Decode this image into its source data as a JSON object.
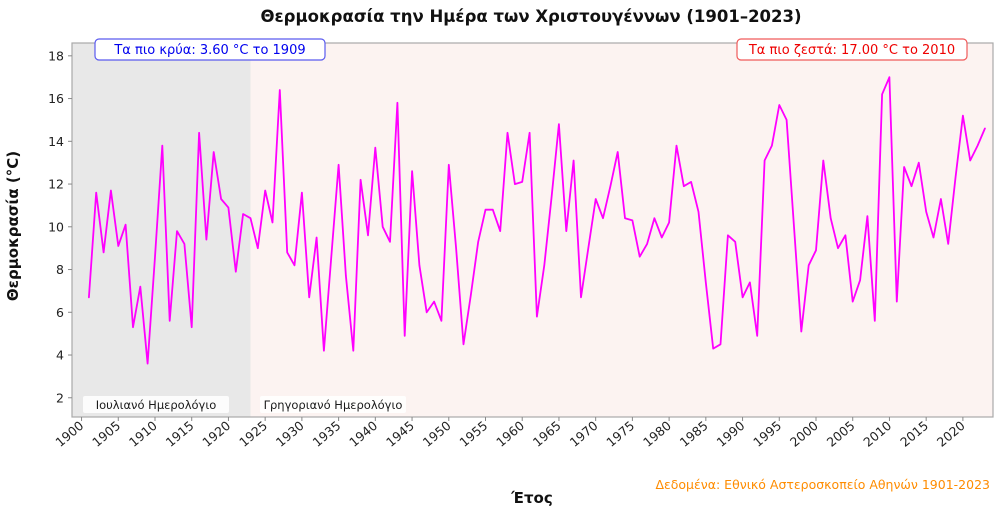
{
  "title": "Θερμοκρασία την Ημέρα των Χριστουγέννων (1901–2023)",
  "annotations": {
    "coldest": {
      "label": "Τα πιο κρύα: 3.60 °C το 1909",
      "value_c": 3.6,
      "year": 1909,
      "text_color": "#0000EE",
      "border_color": "#5A5AEF",
      "box_fill": "#FFFFFF"
    },
    "warmest": {
      "label": "Τα πιο ζεστά: 17.00 °C το 2010",
      "value_c": 17.0,
      "year": 2010,
      "text_color": "#EE0000",
      "border_color": "#F05A5A",
      "box_fill": "#FFFFFF"
    }
  },
  "calendar_regions": {
    "julian": {
      "label": "Ιουλιανό Ημερολόγιο",
      "end_year": 1923,
      "fill": "#E8E8E8"
    },
    "gregorian": {
      "label": "Γρηγοριανό Ημερολόγιο",
      "fill": "#FCF3F1"
    }
  },
  "axes": {
    "x_label": "Έτος",
    "y_label": "Θερμοκρασία (°C)",
    "x_ticks": [
      1900,
      1905,
      1910,
      1915,
      1920,
      1925,
      1930,
      1935,
      1940,
      1945,
      1950,
      1955,
      1960,
      1965,
      1970,
      1975,
      1980,
      1985,
      1990,
      1995,
      2000,
      2005,
      2010,
      2015,
      2020
    ],
    "y_ticks": [
      2,
      4,
      6,
      8,
      10,
      12,
      14,
      16,
      18
    ]
  },
  "credit": {
    "label": "Δεδομένα: Εθνικό Αστεροσκοπείο Αθηνών 1901-2023",
    "color": "#FF8C00"
  },
  "chart_data": {
    "type": "line",
    "title": "Θερμοκρασία την Ημέρα των Χριστουγέννων (1901–2023)",
    "xlabel": "Έτος",
    "ylabel": "Θερμοκρασία (°C)",
    "grid": false,
    "legend": "none",
    "line_color": "#FF00FF",
    "line_width": 1.8,
    "xlim": [
      1898.7,
      2024.1
    ],
    "ylim": [
      1.1,
      18.6
    ],
    "julian_region_end": 1923,
    "min_point": {
      "year": 1909,
      "value": 3.6
    },
    "max_point": {
      "year": 2010,
      "value": 17.0
    },
    "x": [
      1901,
      1902,
      1903,
      1904,
      1905,
      1906,
      1907,
      1908,
      1909,
      1910,
      1911,
      1912,
      1913,
      1914,
      1915,
      1916,
      1917,
      1918,
      1919,
      1920,
      1921,
      1922,
      1923,
      1924,
      1925,
      1926,
      1927,
      1928,
      1929,
      1930,
      1931,
      1932,
      1933,
      1934,
      1935,
      1936,
      1937,
      1938,
      1939,
      1940,
      1941,
      1942,
      1943,
      1944,
      1945,
      1946,
      1947,
      1948,
      1949,
      1950,
      1951,
      1952,
      1953,
      1954,
      1955,
      1956,
      1957,
      1958,
      1959,
      1960,
      1961,
      1962,
      1963,
      1964,
      1965,
      1966,
      1967,
      1968,
      1969,
      1970,
      1971,
      1972,
      1973,
      1974,
      1975,
      1976,
      1977,
      1978,
      1979,
      1980,
      1981,
      1982,
      1983,
      1984,
      1985,
      1986,
      1987,
      1988,
      1989,
      1990,
      1991,
      1992,
      1993,
      1994,
      1995,
      1996,
      1997,
      1998,
      1999,
      2000,
      2001,
      2002,
      2003,
      2004,
      2005,
      2006,
      2007,
      2008,
      2009,
      2010,
      2011,
      2012,
      2013,
      2014,
      2015,
      2016,
      2017,
      2018,
      2019,
      2020,
      2021,
      2022,
      2023
    ],
    "values": [
      6.7,
      11.6,
      8.8,
      11.7,
      9.1,
      10.1,
      5.3,
      7.2,
      3.6,
      8.6,
      13.8,
      5.6,
      9.8,
      9.2,
      5.3,
      14.4,
      9.4,
      13.5,
      11.3,
      10.9,
      7.9,
      10.6,
      10.4,
      9.0,
      11.7,
      10.2,
      16.4,
      8.8,
      8.2,
      11.6,
      6.7,
      9.5,
      4.2,
      8.6,
      12.9,
      7.7,
      4.2,
      12.2,
      9.6,
      13.7,
      10.0,
      9.3,
      15.8,
      4.9,
      12.6,
      8.2,
      6.0,
      6.5,
      5.6,
      12.9,
      9.0,
      4.5,
      6.8,
      9.3,
      10.8,
      10.8,
      9.8,
      14.4,
      12.0,
      12.1,
      14.4,
      5.8,
      8.2,
      11.4,
      14.8,
      9.8,
      13.1,
      6.7,
      9.0,
      11.3,
      10.4,
      11.9,
      13.5,
      10.4,
      10.3,
      8.6,
      9.2,
      10.4,
      9.5,
      10.2,
      13.8,
      11.9,
      12.1,
      10.7,
      7.4,
      4.3,
      4.5,
      9.6,
      9.3,
      6.7,
      7.4,
      4.9,
      13.1,
      13.8,
      15.7,
      15.0,
      10.0,
      5.1,
      8.2,
      8.9,
      13.1,
      10.4,
      9.0,
      9.6,
      6.5,
      7.5,
      10.5,
      5.6,
      16.2,
      17.0,
      6.5,
      12.8,
      11.9,
      13.0,
      10.7,
      9.5,
      11.3,
      9.2,
      12.3,
      15.2,
      13.1,
      13.8,
      14.6
    ]
  }
}
